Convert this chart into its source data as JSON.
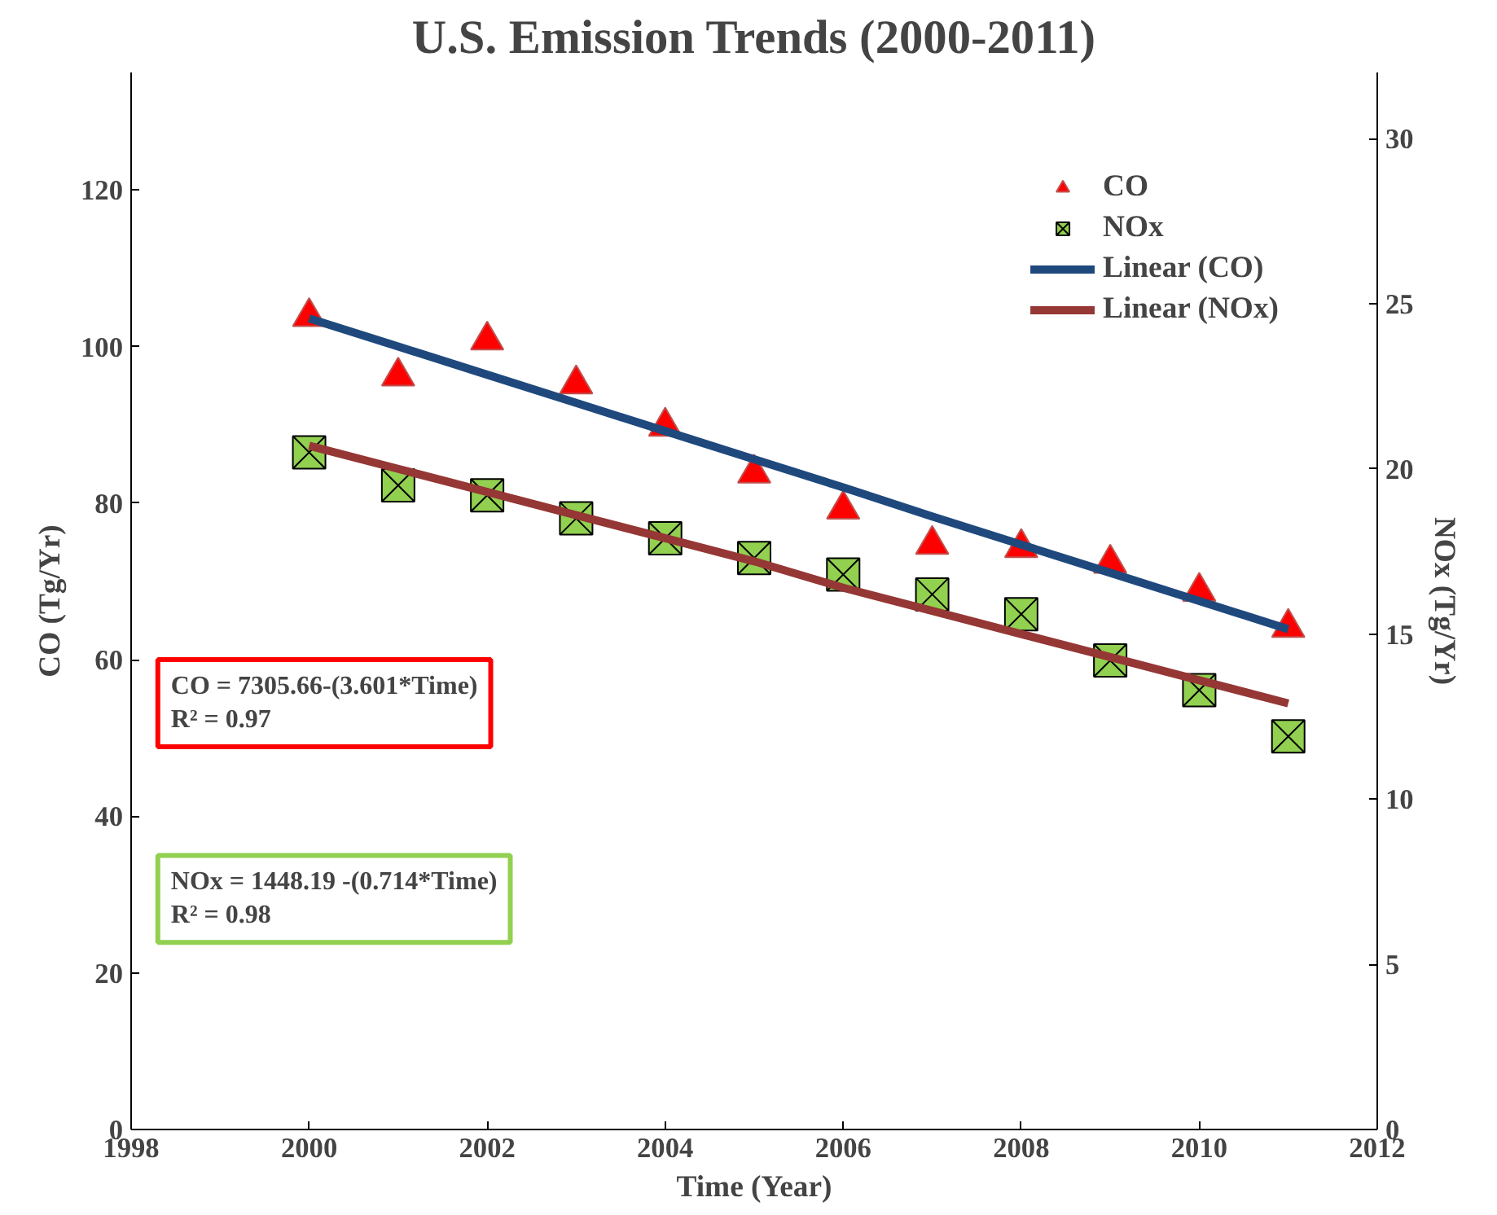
{
  "chart_data": {
    "type": "scatter",
    "title": "U.S. Emission Trends (2000-2011)",
    "xlabel": "Time (Year)",
    "ylabel": "CO (Tg/Yr)",
    "y2label": "NOx (Tg/Yr)",
    "x": [
      2000,
      2001,
      2002,
      2003,
      2004,
      2005,
      2006,
      2007,
      2008,
      2009,
      2010,
      2011
    ],
    "series": [
      {
        "name": "CO",
        "color": "#ff0000",
        "marker": "triangle",
        "values": [
          103.8,
          96.2,
          100.8,
          95.2,
          89.8,
          83.8,
          79.2,
          74.7,
          74.3,
          72.3,
          68.7,
          64.1
        ]
      },
      {
        "name": "NOx",
        "color": "#92d050",
        "marker": "cross",
        "axis": "y2",
        "values": [
          20.5,
          19.5,
          19.2,
          18.5,
          17.9,
          17.3,
          16.8,
          16.2,
          15.6,
          14.2,
          13.3,
          11.9
        ]
      },
      {
        "name": "Linear (CO)",
        "type": "line",
        "color": "#1f497d",
        "values": [
          103.6,
          100.0,
          96.4,
          92.8,
          89.2,
          85.6,
          82.0,
          78.3,
          74.7,
          71.1,
          67.5,
          63.9
        ]
      },
      {
        "name": "Linear (NOx)",
        "type": "line",
        "color": "#953735",
        "axis": "y2",
        "values": [
          20.7,
          20.0,
          19.3,
          18.6,
          17.9,
          17.2,
          16.4,
          15.7,
          15.0,
          14.3,
          13.6,
          12.9
        ]
      }
    ],
    "xlim": [
      1998,
      2012
    ],
    "xticks": [
      1998,
      2000,
      2002,
      2004,
      2006,
      2008,
      2010,
      2012
    ],
    "ylim": [
      0,
      135
    ],
    "yticks": [
      0,
      20,
      40,
      60,
      80,
      100,
      120
    ],
    "y2lim": [
      0,
      32
    ],
    "y2ticks": [
      0,
      5,
      10,
      15,
      20,
      25,
      30
    ],
    "annotations": [
      "CO = 7305.66-(3.601*Time)\nR² = 0.97",
      "NOx = 1448.19 -(0.714*Time)\nR² = 0.98"
    ],
    "legend": "top right",
    "grid": false
  }
}
